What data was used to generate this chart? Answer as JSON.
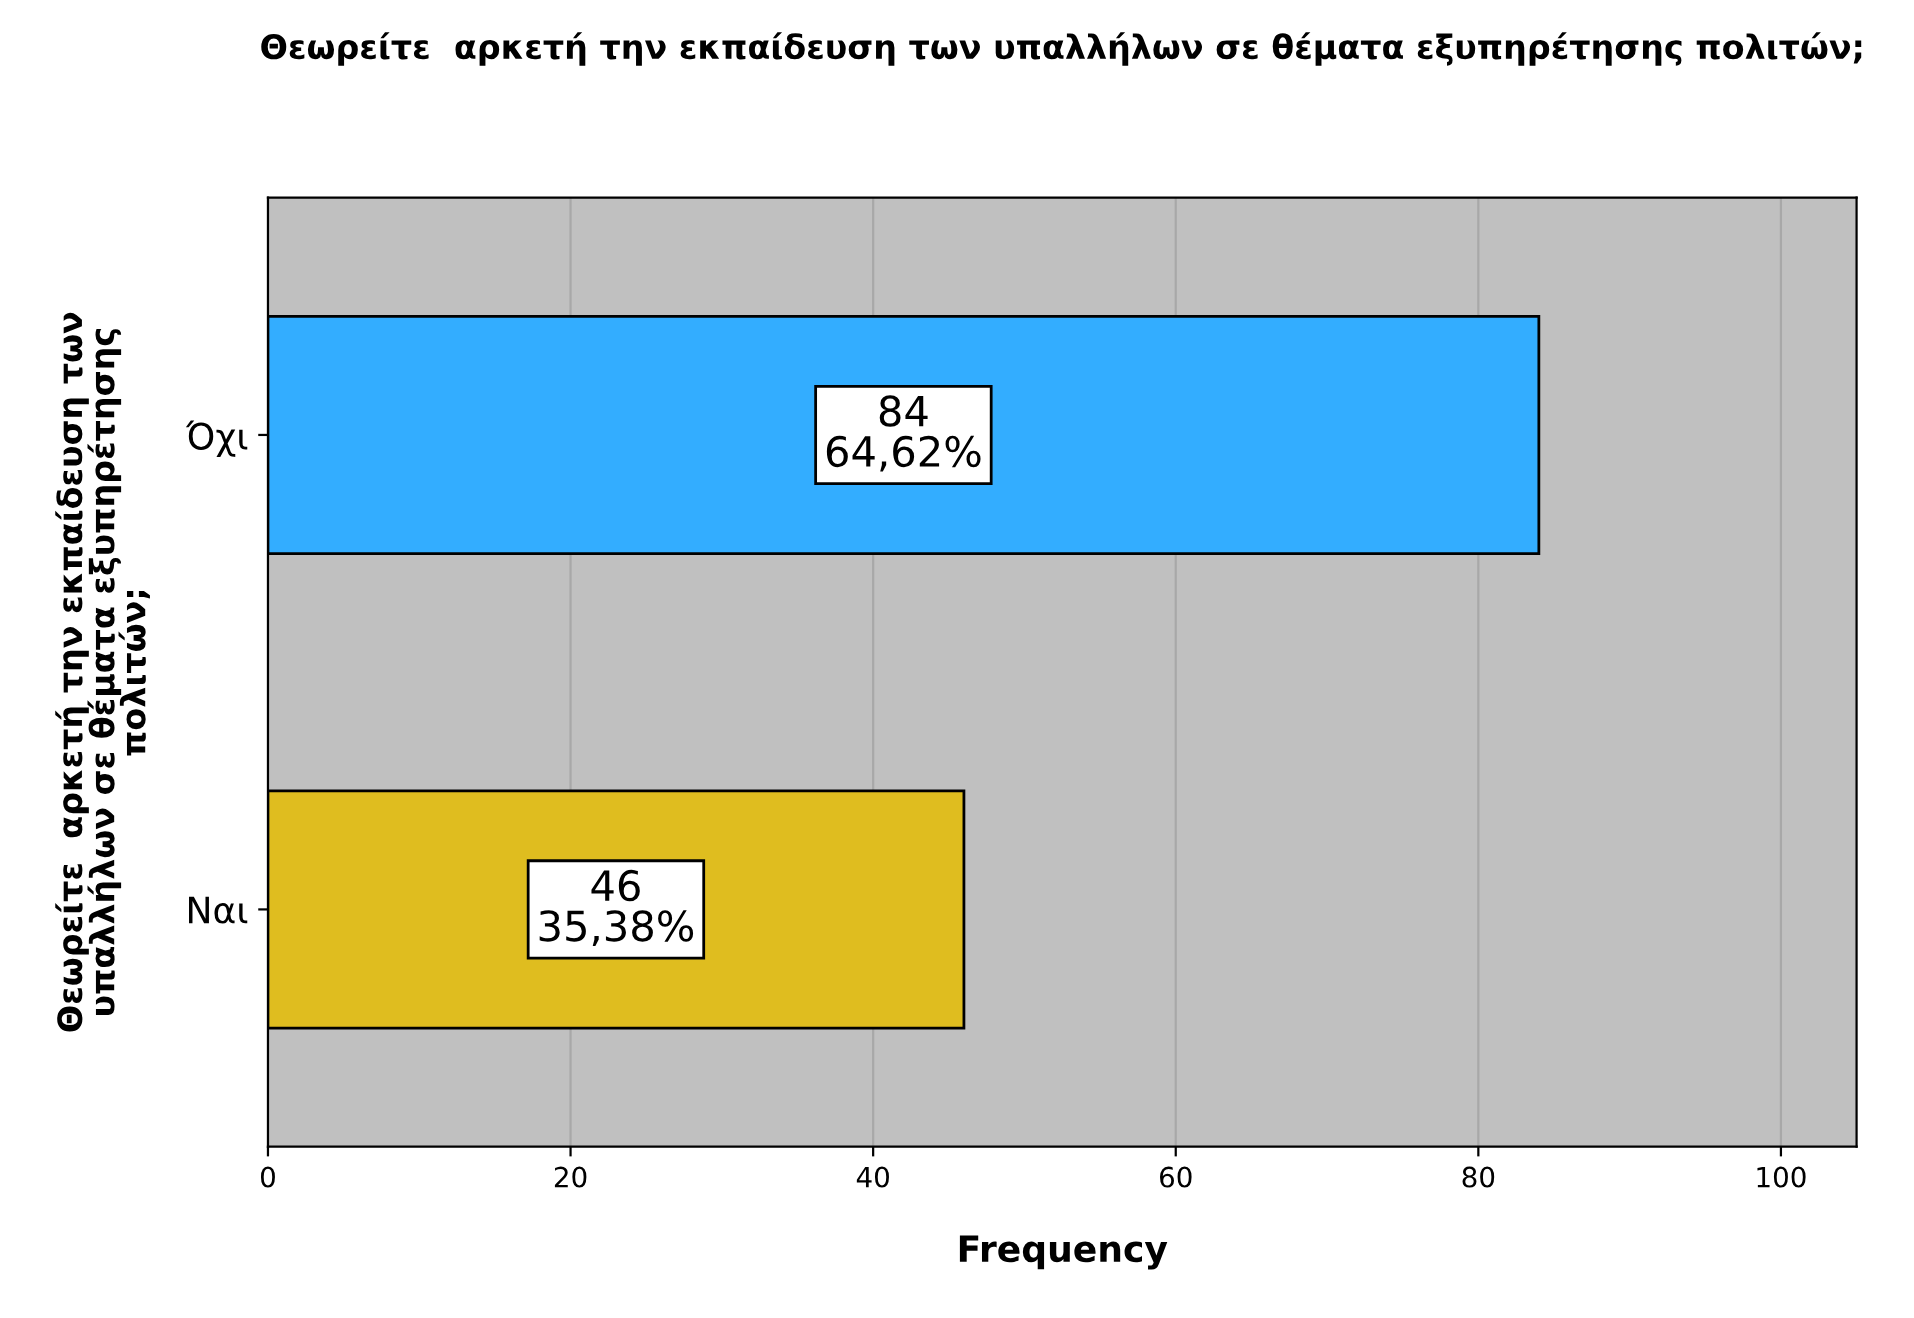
{
  "chart_data": {
    "type": "bar",
    "orientation": "horizontal",
    "title": "Θεωρείτε  αρκετή την εκπαίδευση των υπαλλήλων σε θέματα εξυπηρέτησης πολιτών;",
    "xlabel": "Frequency",
    "ylabel": "Θεωρείτε  αρκετή την εκπαίδευση των\nυπαλλήλων σε θέματα εξυπηρέτησης\nπολιτών;",
    "categories": [
      "Όχι",
      "Ναι"
    ],
    "values": [
      84,
      46
    ],
    "colors": [
      "#33adff",
      "#dfbd1f"
    ],
    "value_labels": [
      "84\n64,62%",
      "46\n35,38%"
    ],
    "xlim": [
      0,
      105
    ],
    "xticks": [
      0,
      20,
      40,
      60,
      80,
      100
    ],
    "grid": "x",
    "legend": false
  }
}
